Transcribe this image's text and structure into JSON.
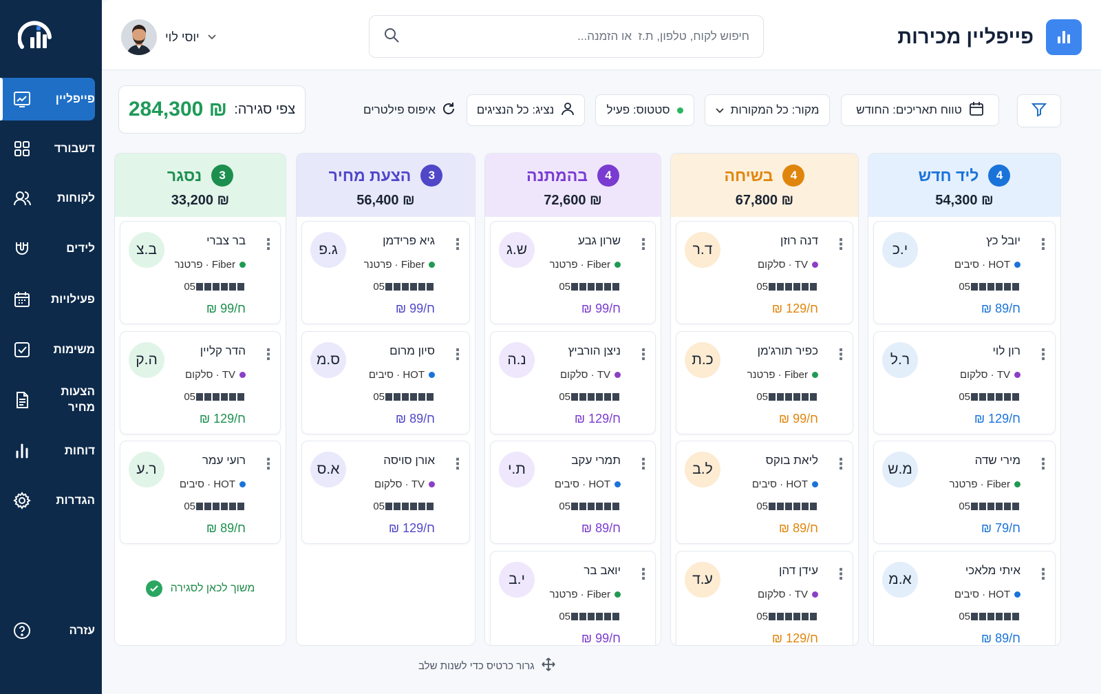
{
  "app": {
    "title": "פייפליין מכירות",
    "search_placeholder": "חיפוש לקוח, טלפון, ת.ז  או הזמנה...",
    "user_name": "יוסי לוי"
  },
  "nav": {
    "items": [
      {
        "label": "פייפליין",
        "icon": "pipeline-icon",
        "active": true
      },
      {
        "label": "דשבורד",
        "icon": "dashboard-icon"
      },
      {
        "label": "לקוחות",
        "icon": "customers-icon"
      },
      {
        "label": "לידים",
        "icon": "magnet-icon"
      },
      {
        "label": "פעילויות",
        "icon": "calendar-icon"
      },
      {
        "label": "משימות",
        "icon": "checkbox-icon"
      },
      {
        "label": "הצעות מחיר",
        "icon": "document-icon"
      },
      {
        "label": "דוחות",
        "icon": "bar-chart-icon"
      },
      {
        "label": "הגדרות",
        "icon": "gear-icon"
      },
      {
        "label": "עזרה",
        "icon": "help-icon"
      }
    ]
  },
  "filters": {
    "forecast_label": "צפי סגירה:",
    "forecast_value": "₪ 284,300",
    "reset_label": "איפוס פילטרים",
    "agent": "נציג: כל הנציגים",
    "status": "סטטוס: פעיל",
    "source": "מקור: כל המקורות",
    "date_range": "טווח תאריכים: החודש"
  },
  "columns": [
    {
      "title": "ליד חדש",
      "count": "4",
      "total": "₪ 54,300",
      "color": "#1a73d9",
      "head_bg": "#e4f0fd",
      "avatar_bg": "#e3eefb",
      "cards": [
        {
          "name": "יובל כץ",
          "source": "HOT · סיבים",
          "dot": "#1a73d9",
          "phone": "05",
          "price": "₪ 89/ח",
          "initials": "י.כ"
        },
        {
          "name": "רון לוי",
          "source": "TV · סלקום",
          "dot": "#8b3fc6",
          "phone": "05",
          "price": "₪ 129/ח",
          "initials": "ר.ל"
        },
        {
          "name": "מירי שדה",
          "source": "Fiber · פרטנר",
          "dot": "#1f9a52",
          "phone": "05",
          "price": "₪ 79/ח",
          "initials": "מ.ש"
        },
        {
          "name": "איתי מלאכי",
          "source": "HOT · סיבים",
          "dot": "#1a73d9",
          "phone": "05",
          "price": "₪ 89/ח",
          "initials": "א.מ"
        }
      ]
    },
    {
      "title": "בשיחה",
      "count": "4",
      "total": "₪ 67,800",
      "color": "#e0850c",
      "head_bg": "#fdf0dc",
      "avatar_bg": "#fdebd2",
      "cards": [
        {
          "name": "דנה רוזן",
          "source": "TV · סלקום",
          "dot": "#8b3fc6",
          "phone": "05",
          "price": "₪ 129/ח",
          "initials": "ד.ר"
        },
        {
          "name": "כפיר תורג'מן",
          "source": "Fiber · פרטנר",
          "dot": "#1f9a52",
          "phone": "05",
          "price": "₪ 99/ח",
          "initials": "כ.ת"
        },
        {
          "name": "ליאת בוקס",
          "source": "HOT · סיבים",
          "dot": "#1a73d9",
          "phone": "05",
          "price": "₪ 89/ח",
          "initials": "ל.ב"
        },
        {
          "name": "עידן דהן",
          "source": "TV · סלקום",
          "dot": "#8b3fc6",
          "phone": "05",
          "price": "₪ 129/ח",
          "initials": "ע.ד"
        }
      ]
    },
    {
      "title": "בהמתנה",
      "count": "4",
      "total": "₪ 72,600",
      "color": "#7a3bd0",
      "head_bg": "#efe6fc",
      "avatar_bg": "#efe7fb",
      "cards": [
        {
          "name": "שרון גבע",
          "source": "Fiber · פרטנר",
          "dot": "#1f9a52",
          "phone": "05",
          "price": "₪ 99/ח",
          "initials": "ש.ג"
        },
        {
          "name": "ניצן הורביץ",
          "source": "TV · סלקום",
          "dot": "#8b3fc6",
          "phone": "05",
          "price": "₪ 129/ח",
          "initials": "נ.ה"
        },
        {
          "name": "תמרי עקב",
          "source": "HOT · סיבים",
          "dot": "#1a73d9",
          "phone": "05",
          "price": "₪ 89/ח",
          "initials": "ת.י"
        },
        {
          "name": "יואב בר",
          "source": "Fiber · פרטנר",
          "dot": "#1f9a52",
          "phone": "05",
          "price": "₪ 99/ח",
          "initials": "י.ב"
        }
      ]
    },
    {
      "title": "הצעת מחיר",
      "count": "3",
      "total": "₪ 56,400",
      "color": "#4f46c8",
      "head_bg": "#e8e8fb",
      "avatar_bg": "#e9e9fb",
      "cards": [
        {
          "name": "גיא פרידמן",
          "source": "Fiber · פרטנר",
          "dot": "#1f9a52",
          "phone": "05",
          "price": "₪ 99/ח",
          "initials": "ג.פ"
        },
        {
          "name": "סיון מרום",
          "source": "HOT · סיבים",
          "dot": "#1a73d9",
          "phone": "05",
          "price": "₪ 89/ח",
          "initials": "ס.מ"
        },
        {
          "name": "אורן סויסה",
          "source": "TV · סלקום",
          "dot": "#8b3fc6",
          "phone": "05",
          "price": "₪ 129/ח",
          "initials": "א.ס"
        }
      ]
    },
    {
      "title": "נסגר",
      "count": "3",
      "total": "₪ 33,200",
      "color": "#1c8f4e",
      "head_bg": "#e1f5e9",
      "avatar_bg": "#e1f4e8",
      "cards": [
        {
          "name": "בר צברי",
          "source": "Fiber · פרטנר",
          "dot": "#1f9a52",
          "phone": "05",
          "price": "₪ 99/ח",
          "initials": "ב.צ"
        },
        {
          "name": "הדר קליין",
          "source": "TV · סלקום",
          "dot": "#8b3fc6",
          "phone": "05",
          "price": "₪ 129/ח",
          "initials": "ה.ק"
        },
        {
          "name": "רועי עמר",
          "source": "HOT · סיבים",
          "dot": "#1a73d9",
          "phone": "05",
          "price": "₪ 89/ח",
          "initials": "ר.ע"
        }
      ],
      "drop_hint": "משוך לכאן לסגירה"
    }
  ],
  "footer_hint": "גרור כרטיס כדי לשנות שלב"
}
